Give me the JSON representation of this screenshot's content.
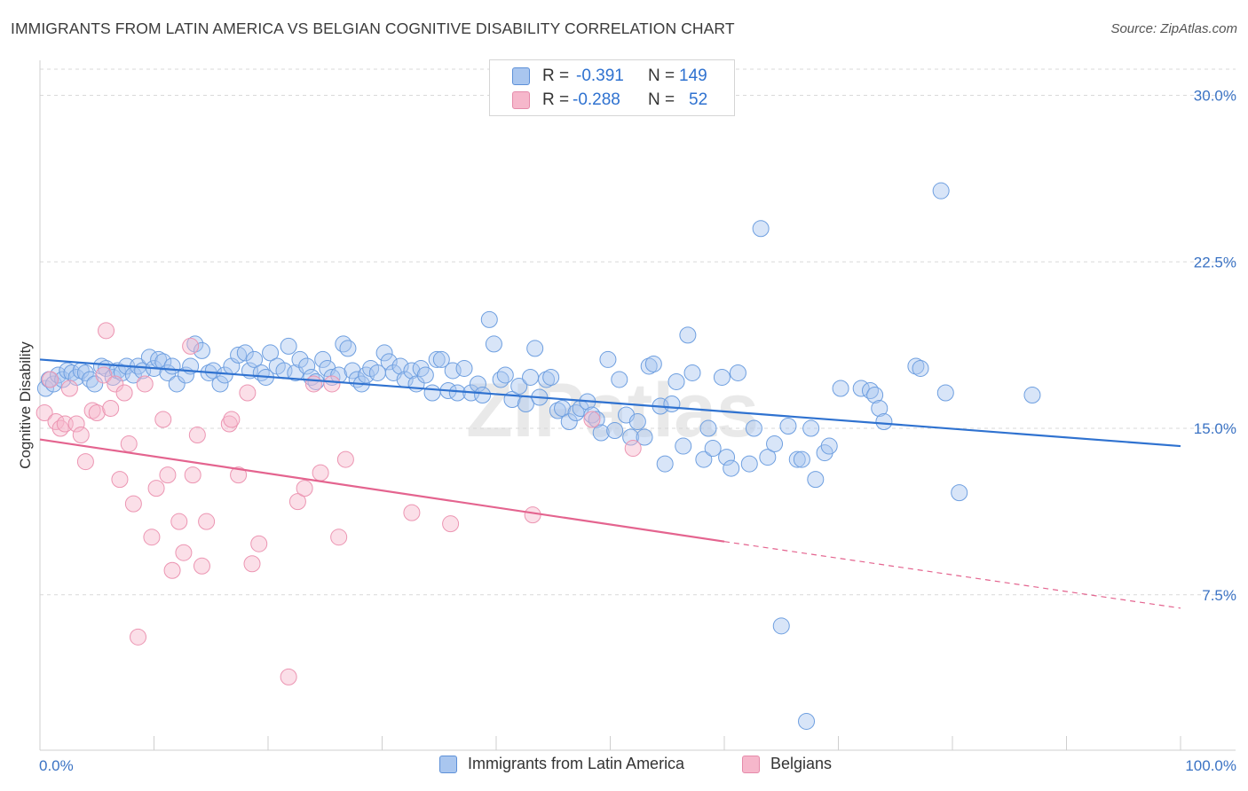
{
  "header": {
    "title": "IMMIGRANTS FROM LATIN AMERICA VS BELGIAN COGNITIVE DISABILITY CORRELATION CHART",
    "source": "Source: ZipAtlas.com"
  },
  "watermark": "ZIPatlas",
  "colors": {
    "blue": "#2f72d0",
    "blue_fill": "#a9c6ef",
    "pink": "#e4648f",
    "pink_fill": "#f6b7cb",
    "grid": "#d9d9d9",
    "tick_label": "#3b73c4"
  },
  "chart_data": {
    "type": "scatter",
    "xlabel": "",
    "ylabel": "Cognitive Disability",
    "xlim": [
      0,
      100
    ],
    "ylim": [
      0.5,
      31.5
    ],
    "x_tick_labels": [
      {
        "value": 0,
        "label": "0.0%"
      },
      {
        "value": 100,
        "label": "100.0%"
      }
    ],
    "y_ticks": [
      {
        "value": 7.5,
        "label": "7.5%"
      },
      {
        "value": 15.0,
        "label": "15.0%"
      },
      {
        "value": 22.5,
        "label": "22.5%"
      },
      {
        "value": 30.0,
        "label": "30.0%"
      }
    ],
    "grid": "horizontal dashed",
    "legend_top": [
      {
        "r_label": "R =",
        "r_value": "-0.391",
        "n_label": "N =",
        "n_value": "149"
      },
      {
        "r_label": "R =",
        "r_value": "-0.288",
        "n_label": "N =",
        "n_value": "52"
      }
    ],
    "legend_position": "top-center",
    "series": [
      {
        "name": "Immigrants from Latin America",
        "color": "#2f72d0",
        "trendline": {
          "x": [
            0,
            100
          ],
          "y": [
            18.1,
            14.2
          ]
        },
        "points": [
          [
            0.5,
            16.8
          ],
          [
            0.8,
            17.2
          ],
          [
            1.2,
            17.0
          ],
          [
            1.6,
            17.4
          ],
          [
            2.0,
            17.2
          ],
          [
            2.4,
            17.6
          ],
          [
            2.8,
            17.5
          ],
          [
            3.2,
            17.3
          ],
          [
            3.6,
            17.6
          ],
          [
            4.0,
            17.5
          ],
          [
            4.4,
            17.2
          ],
          [
            4.8,
            17.0
          ],
          [
            5.4,
            17.8
          ],
          [
            5.8,
            17.7
          ],
          [
            6.4,
            17.3
          ],
          [
            6.8,
            17.6
          ],
          [
            7.2,
            17.5
          ],
          [
            7.6,
            17.8
          ],
          [
            8.2,
            17.4
          ],
          [
            8.6,
            17.8
          ],
          [
            9.0,
            17.6
          ],
          [
            9.6,
            18.2
          ],
          [
            10.0,
            17.7
          ],
          [
            10.4,
            18.1
          ],
          [
            10.8,
            18.0
          ],
          [
            11.2,
            17.5
          ],
          [
            11.6,
            17.8
          ],
          [
            12.0,
            17.0
          ],
          [
            12.8,
            17.4
          ],
          [
            13.2,
            17.8
          ],
          [
            13.6,
            18.8
          ],
          [
            14.2,
            18.5
          ],
          [
            14.8,
            17.5
          ],
          [
            15.2,
            17.6
          ],
          [
            15.8,
            17.0
          ],
          [
            16.2,
            17.4
          ],
          [
            16.8,
            17.8
          ],
          [
            17.4,
            18.3
          ],
          [
            18.0,
            18.4
          ],
          [
            18.4,
            17.6
          ],
          [
            18.8,
            18.1
          ],
          [
            19.4,
            17.5
          ],
          [
            19.8,
            17.3
          ],
          [
            20.2,
            18.4
          ],
          [
            20.8,
            17.8
          ],
          [
            21.4,
            17.6
          ],
          [
            21.8,
            18.7
          ],
          [
            22.4,
            17.5
          ],
          [
            22.8,
            18.1
          ],
          [
            23.4,
            17.8
          ],
          [
            23.8,
            17.3
          ],
          [
            24.2,
            17.1
          ],
          [
            24.8,
            18.1
          ],
          [
            25.2,
            17.7
          ],
          [
            25.6,
            17.3
          ],
          [
            26.2,
            17.4
          ],
          [
            26.6,
            18.8
          ],
          [
            27.0,
            18.6
          ],
          [
            27.4,
            17.6
          ],
          [
            27.8,
            17.2
          ],
          [
            28.2,
            17.0
          ],
          [
            28.6,
            17.4
          ],
          [
            29.0,
            17.7
          ],
          [
            29.6,
            17.5
          ],
          [
            30.2,
            18.4
          ],
          [
            30.6,
            18.0
          ],
          [
            31.0,
            17.5
          ],
          [
            31.6,
            17.8
          ],
          [
            32.0,
            17.2
          ],
          [
            32.6,
            17.6
          ],
          [
            33.0,
            17.0
          ],
          [
            33.4,
            17.7
          ],
          [
            33.8,
            17.4
          ],
          [
            34.4,
            16.6
          ],
          [
            34.8,
            18.1
          ],
          [
            35.2,
            18.1
          ],
          [
            35.8,
            16.7
          ],
          [
            36.2,
            17.6
          ],
          [
            36.6,
            16.6
          ],
          [
            37.2,
            17.7
          ],
          [
            37.8,
            16.6
          ],
          [
            38.4,
            17.0
          ],
          [
            38.8,
            16.5
          ],
          [
            39.4,
            19.9
          ],
          [
            39.8,
            18.8
          ],
          [
            40.4,
            17.2
          ],
          [
            40.8,
            17.4
          ],
          [
            41.4,
            16.3
          ],
          [
            42.0,
            16.9
          ],
          [
            42.6,
            16.1
          ],
          [
            43.0,
            17.3
          ],
          [
            43.4,
            18.6
          ],
          [
            43.8,
            16.4
          ],
          [
            44.4,
            17.2
          ],
          [
            44.8,
            17.3
          ],
          [
            45.4,
            15.8
          ],
          [
            45.8,
            15.9
          ],
          [
            46.4,
            15.3
          ],
          [
            47.0,
            15.7
          ],
          [
            47.4,
            15.9
          ],
          [
            48.0,
            16.2
          ],
          [
            48.4,
            15.6
          ],
          [
            48.8,
            15.4
          ],
          [
            49.2,
            14.8
          ],
          [
            49.8,
            18.1
          ],
          [
            50.4,
            14.9
          ],
          [
            50.8,
            17.2
          ],
          [
            51.4,
            15.6
          ],
          [
            51.8,
            14.6
          ],
          [
            52.4,
            15.3
          ],
          [
            53.0,
            14.6
          ],
          [
            53.4,
            17.8
          ],
          [
            53.8,
            17.9
          ],
          [
            54.4,
            16.0
          ],
          [
            54.8,
            13.4
          ],
          [
            55.4,
            16.1
          ],
          [
            55.8,
            17.1
          ],
          [
            56.4,
            14.2
          ],
          [
            56.8,
            19.2
          ],
          [
            57.2,
            17.5
          ],
          [
            58.2,
            13.6
          ],
          [
            58.6,
            15.0
          ],
          [
            59.0,
            14.1
          ],
          [
            59.8,
            17.3
          ],
          [
            60.2,
            13.7
          ],
          [
            60.6,
            13.2
          ],
          [
            61.2,
            17.5
          ],
          [
            62.2,
            13.4
          ],
          [
            62.6,
            15.0
          ],
          [
            63.2,
            24.0
          ],
          [
            63.8,
            13.7
          ],
          [
            64.4,
            14.3
          ],
          [
            65.0,
            6.1
          ],
          [
            65.6,
            15.1
          ],
          [
            66.4,
            13.6
          ],
          [
            66.8,
            13.6
          ],
          [
            67.2,
            1.8
          ],
          [
            67.6,
            15.0
          ],
          [
            68.0,
            12.7
          ],
          [
            68.8,
            13.9
          ],
          [
            69.2,
            14.2
          ],
          [
            70.2,
            16.8
          ],
          [
            72.0,
            16.8
          ],
          [
            72.8,
            16.7
          ],
          [
            73.2,
            16.5
          ],
          [
            73.6,
            15.9
          ],
          [
            74.0,
            15.3
          ],
          [
            76.8,
            17.8
          ],
          [
            77.2,
            17.7
          ],
          [
            79.0,
            25.7
          ],
          [
            79.4,
            16.6
          ],
          [
            80.6,
            12.1
          ],
          [
            87.0,
            16.5
          ]
        ]
      },
      {
        "name": "Belgians",
        "color": "#e4648f",
        "trendline": {
          "x": [
            0,
            60,
            100
          ],
          "y": [
            14.5,
            9.9,
            6.9
          ],
          "solid_until": 60
        },
        "points": [
          [
            0.4,
            15.7
          ],
          [
            0.9,
            17.2
          ],
          [
            1.4,
            15.3
          ],
          [
            1.8,
            15.0
          ],
          [
            2.2,
            15.2
          ],
          [
            2.6,
            16.8
          ],
          [
            3.2,
            15.2
          ],
          [
            3.6,
            14.7
          ],
          [
            4.0,
            13.5
          ],
          [
            4.6,
            15.8
          ],
          [
            5.0,
            15.7
          ],
          [
            5.6,
            17.4
          ],
          [
            5.8,
            19.4
          ],
          [
            6.2,
            15.9
          ],
          [
            6.6,
            17.0
          ],
          [
            7.0,
            12.7
          ],
          [
            7.4,
            16.6
          ],
          [
            7.8,
            14.3
          ],
          [
            8.2,
            11.6
          ],
          [
            8.6,
            5.6
          ],
          [
            9.2,
            17.0
          ],
          [
            9.8,
            10.1
          ],
          [
            10.2,
            12.3
          ],
          [
            10.8,
            15.4
          ],
          [
            11.2,
            12.9
          ],
          [
            11.6,
            8.6
          ],
          [
            12.2,
            10.8
          ],
          [
            12.6,
            9.4
          ],
          [
            13.2,
            18.7
          ],
          [
            13.4,
            12.9
          ],
          [
            13.8,
            14.7
          ],
          [
            14.2,
            8.8
          ],
          [
            14.6,
            10.8
          ],
          [
            16.6,
            15.2
          ],
          [
            16.8,
            15.4
          ],
          [
            17.4,
            12.9
          ],
          [
            18.2,
            16.6
          ],
          [
            18.6,
            8.9
          ],
          [
            19.2,
            9.8
          ],
          [
            21.8,
            3.8
          ],
          [
            22.6,
            11.7
          ],
          [
            23.2,
            12.3
          ],
          [
            24.0,
            17.0
          ],
          [
            24.6,
            13.0
          ],
          [
            25.6,
            17.0
          ],
          [
            26.2,
            10.1
          ],
          [
            26.8,
            13.6
          ],
          [
            32.6,
            11.2
          ],
          [
            36.0,
            10.7
          ],
          [
            43.2,
            11.1
          ],
          [
            48.4,
            15.4
          ],
          [
            52.0,
            14.1
          ]
        ]
      }
    ]
  }
}
